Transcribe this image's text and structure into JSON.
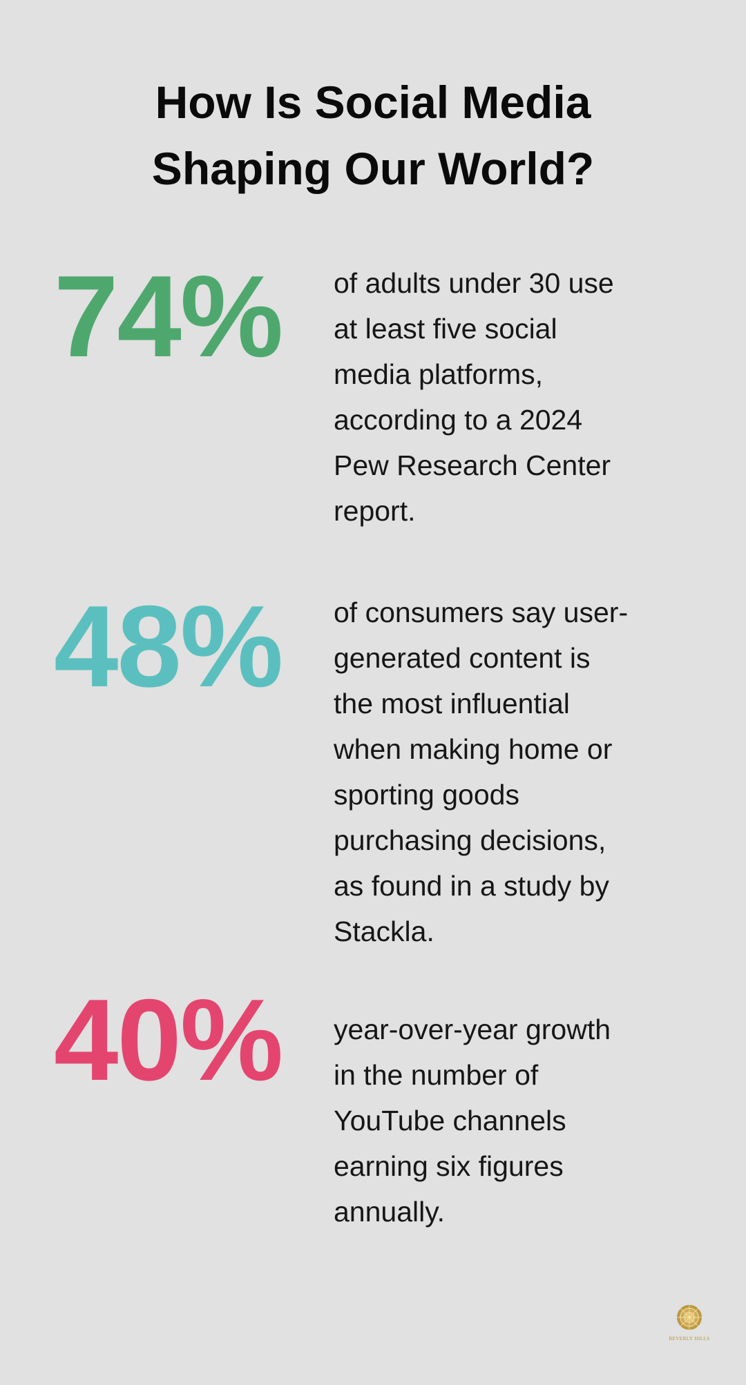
{
  "title": [
    "How Is Social Media",
    "Shaping Our World?"
  ],
  "stats": [
    {
      "value": "74%",
      "color": "#4ea86e",
      "lines": [
        "of adults under 30 use",
        "at least five social",
        "media platforms,",
        "according to a 2024",
        "Pew Research Center",
        "report."
      ]
    },
    {
      "value": "48%",
      "color": "#5bbfbf",
      "lines": [
        "of consumers say user-",
        "generated content is",
        "the most influential",
        "when making home or",
        "sporting goods",
        "purchasing decisions,",
        "as found in a study by",
        "Stackla."
      ]
    },
    {
      "value": "40%",
      "color": "#e4456f",
      "lines": [
        "year-over-year growth",
        "in the number of",
        "YouTube channels",
        "earning six figures",
        "annually."
      ]
    }
  ],
  "logo": {
    "text": "BEVERLY HILLS",
    "color": "#c9a44a",
    "icon": "ornamental-medallion-icon"
  }
}
